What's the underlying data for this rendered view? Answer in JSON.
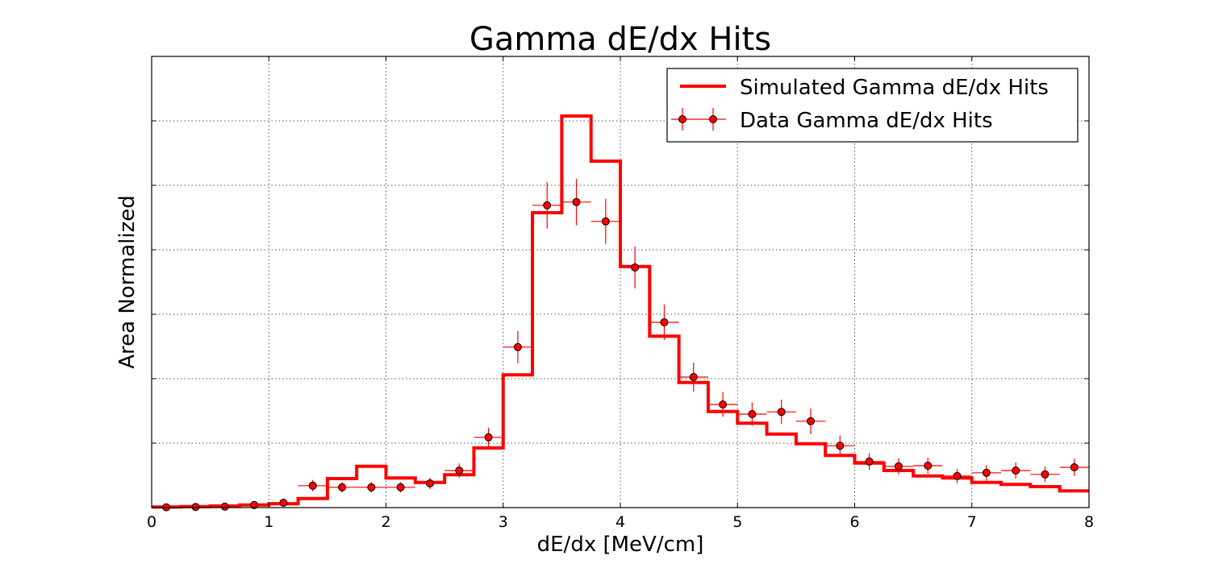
{
  "chart_data": {
    "type": "histogram",
    "title": "Gamma dE/dx Hits",
    "xlabel": "dE/dx [MeV/cm]",
    "ylabel": "Area Normalized",
    "xlim": [
      0,
      8
    ],
    "ylim": [
      0,
      0.14
    ],
    "xticks": [
      "0",
      "1",
      "2",
      "3",
      "4",
      "5",
      "6",
      "7",
      "8"
    ],
    "yticks_labeled": false,
    "grid": true,
    "legend_position": "upper-right",
    "colors": {
      "series": "#ff0000"
    },
    "bin_edges": [
      0,
      0.25,
      0.5,
      0.75,
      1.0,
      1.25,
      1.5,
      1.75,
      2.0,
      2.25,
      2.5,
      2.75,
      3.0,
      3.25,
      3.5,
      3.75,
      4.0,
      4.25,
      4.5,
      4.75,
      5.0,
      5.25,
      5.5,
      5.75,
      6.0,
      6.25,
      6.5,
      6.75,
      7.0,
      7.25,
      7.5,
      7.75,
      8.0
    ],
    "series": [
      {
        "name": "Simulated Gamma dE/dx Hits",
        "kind": "step",
        "values": [
          0.0002,
          0.0003,
          0.0005,
          0.0008,
          0.0012,
          0.0028,
          0.009,
          0.0128,
          0.0092,
          0.0078,
          0.0102,
          0.0185,
          0.0412,
          0.0915,
          0.1215,
          0.1075,
          0.0748,
          0.0532,
          0.0388,
          0.0298,
          0.0262,
          0.0228,
          0.0198,
          0.0162,
          0.0138,
          0.0115,
          0.0098,
          0.0092,
          0.0078,
          0.0072,
          0.0065,
          0.0052
        ]
      },
      {
        "name": "Data Gamma dE/dx Hits",
        "kind": "errorbar",
        "values": [
          0.0001,
          0.0002,
          0.0003,
          0.0008,
          0.0015,
          0.0068,
          0.0063,
          0.0063,
          0.0063,
          0.0075,
          0.0115,
          0.0218,
          0.0498,
          0.0938,
          0.0948,
          0.0888,
          0.0745,
          0.0575,
          0.0405,
          0.032,
          0.029,
          0.0297,
          0.0268,
          0.0192,
          0.0143,
          0.0128,
          0.013,
          0.0098,
          0.0108,
          0.0115,
          0.0103,
          0.0125
        ],
        "errors": [
          0.0001,
          0.0002,
          0.0003,
          0.0005,
          0.0007,
          0.0018,
          0.0016,
          0.0016,
          0.0016,
          0.0018,
          0.0022,
          0.003,
          0.005,
          0.0072,
          0.0072,
          0.007,
          0.0065,
          0.0055,
          0.0045,
          0.0038,
          0.0036,
          0.0038,
          0.004,
          0.0032,
          0.0026,
          0.0025,
          0.0025,
          0.0022,
          0.0024,
          0.0025,
          0.0024,
          0.0027
        ]
      }
    ]
  }
}
